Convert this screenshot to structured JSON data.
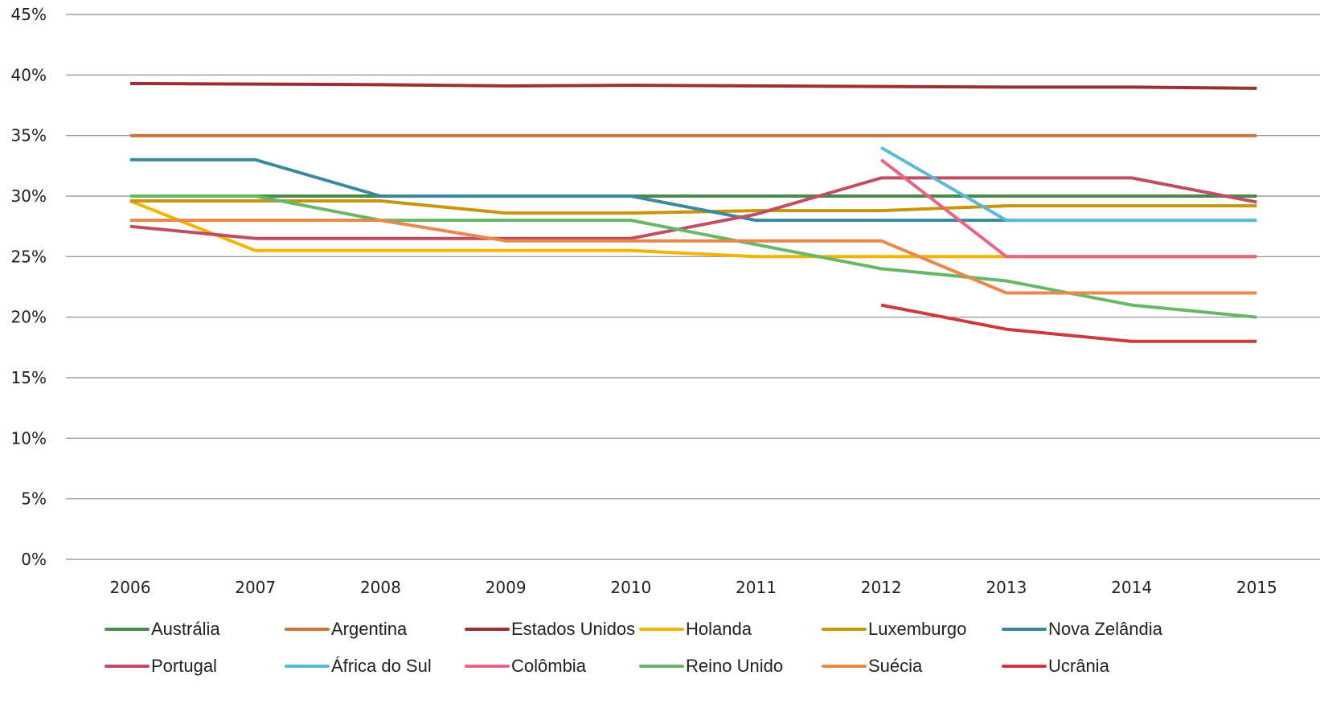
{
  "chart_data": {
    "type": "line",
    "title": "",
    "xlabel": "",
    "ylabel": "",
    "x": [
      "2006",
      "2007",
      "2008",
      "2009",
      "2010",
      "2011",
      "2012",
      "2013",
      "2014",
      "2015"
    ],
    "ylim": [
      0,
      45
    ],
    "yticks": [
      0,
      5,
      10,
      15,
      20,
      25,
      30,
      35,
      40,
      45
    ],
    "ytick_labels": [
      "0%",
      "5%",
      "10%",
      "15%",
      "20%",
      "25%",
      "30%",
      "35%",
      "40%",
      "45%"
    ],
    "grid": "horizontal",
    "legend_position": "bottom",
    "series": [
      {
        "name": "Austrália",
        "color": "#4a8a4a",
        "values": [
          30,
          30,
          30,
          30,
          30,
          30,
          30,
          30,
          30,
          30
        ]
      },
      {
        "name": "Argentina",
        "color": "#c8743c",
        "values": [
          35,
          35,
          35,
          35,
          35,
          35,
          35,
          35,
          35,
          35
        ]
      },
      {
        "name": "Estados Unidos",
        "color": "#9a3030",
        "values": [
          39.3,
          39.25,
          39.2,
          39.1,
          39.15,
          39.1,
          39.05,
          39.0,
          39.0,
          38.9
        ]
      },
      {
        "name": "Holanda",
        "color": "#f2b400",
        "values": [
          29.6,
          25.5,
          25.5,
          25.5,
          25.5,
          25,
          25,
          25,
          25,
          25
        ]
      },
      {
        "name": "Luxemburgo",
        "color": "#c8960a",
        "values": [
          29.6,
          29.6,
          29.6,
          28.6,
          28.6,
          28.8,
          28.8,
          29.2,
          29.2,
          29.2
        ]
      },
      {
        "name": "Nova Zelândia",
        "color": "#3a8a9e",
        "values": [
          33,
          33,
          30,
          30,
          30,
          28,
          28,
          28,
          28,
          28
        ]
      },
      {
        "name": "Portugal",
        "color": "#bf4e62",
        "values": [
          27.5,
          26.5,
          26.5,
          26.5,
          26.5,
          28.5,
          31.5,
          31.5,
          31.5,
          29.5
        ]
      },
      {
        "name": "África do Sul",
        "color": "#5bb8d6",
        "values": [
          null,
          null,
          null,
          null,
          null,
          null,
          34,
          28,
          28,
          28
        ]
      },
      {
        "name": "Colômbia",
        "color": "#e86480",
        "values": [
          null,
          null,
          null,
          null,
          null,
          null,
          33,
          25,
          25,
          25
        ]
      },
      {
        "name": "Reino Unido",
        "color": "#66b866",
        "values": [
          30,
          30,
          28,
          28,
          28,
          26,
          24,
          23,
          21,
          20
        ]
      },
      {
        "name": "Suécia",
        "color": "#e8884a",
        "values": [
          28,
          28,
          28,
          26.3,
          26.3,
          26.3,
          26.3,
          22,
          22,
          22
        ]
      },
      {
        "name": "Ucrânia",
        "color": "#cc3a3a",
        "values": [
          null,
          null,
          null,
          null,
          null,
          null,
          21,
          19,
          18,
          18
        ]
      }
    ]
  }
}
